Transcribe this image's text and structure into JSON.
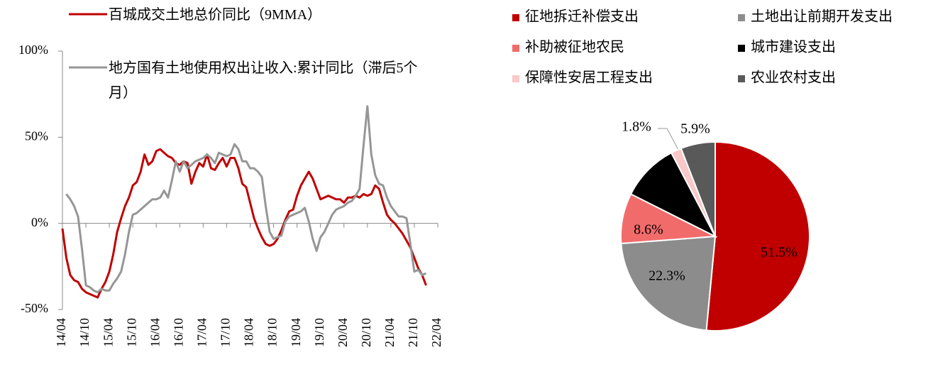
{
  "chart_data": [
    {
      "type": "line",
      "categories": [
        "14/04",
        null,
        null,
        null,
        null,
        null,
        "14/10",
        null,
        null,
        null,
        null,
        null,
        "15/04",
        null,
        null,
        null,
        null,
        null,
        "15/10",
        null,
        null,
        null,
        null,
        null,
        "16/04",
        null,
        null,
        null,
        null,
        null,
        "16/10",
        null,
        null,
        null,
        null,
        null,
        "17/04",
        null,
        null,
        null,
        null,
        null,
        "17/10",
        null,
        null,
        null,
        null,
        null,
        "18/04",
        null,
        null,
        null,
        null,
        null,
        "18/10",
        null,
        null,
        null,
        null,
        null,
        "19/04",
        null,
        null,
        null,
        null,
        null,
        "19/10",
        null,
        null,
        null,
        null,
        null,
        "20/04",
        null,
        null,
        null,
        null,
        null,
        "20/10",
        null,
        null,
        null,
        null,
        null,
        "21/04",
        null,
        null,
        null,
        null,
        null,
        "21/10",
        null,
        null,
        null,
        null,
        null,
        "22/04"
      ],
      "series": [
        {
          "name": "百城成交土地总价同比（9MMA）",
          "color": "#c00000",
          "values": [
            -3,
            -20,
            -30,
            -33,
            -34,
            -38,
            -40,
            -41,
            -42,
            -43,
            -38,
            -34,
            -28,
            -18,
            -5,
            3,
            10,
            15,
            22,
            24,
            30,
            40,
            34,
            36,
            42,
            43,
            41,
            39,
            38,
            35,
            34,
            36,
            35,
            23,
            30,
            35,
            33,
            40,
            32,
            31,
            35,
            38,
            33,
            38,
            38,
            32,
            23,
            21,
            12,
            3,
            -3,
            -8,
            -12,
            -13,
            -12,
            -9,
            -4,
            2,
            7,
            8,
            16,
            22,
            26,
            30,
            26,
            20,
            14,
            15,
            16,
            15,
            14,
            14,
            12,
            15,
            15,
            16,
            15,
            17,
            16,
            17,
            22,
            20,
            12,
            5,
            2,
            0,
            -3,
            -6,
            -10,
            -14,
            -20,
            -26,
            -30,
            -36,
            null,
            null,
            null
          ]
        },
        {
          "name": "地方国有土地使用权出让收入:累计同比（滞后5个月）",
          "color": "#969696",
          "values": [
            null,
            17,
            14,
            10,
            4,
            -15,
            -36,
            -37,
            -39,
            -40,
            -38,
            -39,
            -39,
            -35,
            -32,
            -28,
            -18,
            -5,
            5,
            6,
            8,
            10,
            12,
            14,
            14,
            15,
            19,
            15,
            25,
            36,
            30,
            36,
            32,
            34,
            36,
            37,
            38,
            40,
            38,
            35,
            41,
            40,
            39,
            40,
            46,
            43,
            36,
            36,
            32,
            32,
            30,
            27,
            10,
            -5,
            -9,
            -8,
            -7,
            1,
            4,
            5,
            6,
            7,
            9,
            1,
            -9,
            -16,
            -8,
            -5,
            0,
            5,
            8,
            9,
            10,
            12,
            13,
            16,
            20,
            45,
            68,
            40,
            28,
            23,
            22,
            15,
            10,
            7,
            4,
            4,
            3,
            -12,
            -28,
            -27,
            -30,
            -29,
            null,
            null,
            null
          ]
        }
      ],
      "ylim": [
        -50,
        100
      ],
      "yticks": [
        {
          "value": -50,
          "label": "-50%"
        },
        {
          "value": 0,
          "label": "0%"
        },
        {
          "value": 50,
          "label": "50%"
        },
        {
          "value": 100,
          "label": "100%"
        }
      ],
      "grid": false
    },
    {
      "type": "pie",
      "categories": [
        "征地拆迁补偿支出",
        "土地出让前期开发支出",
        "补助被征地农民",
        "城市建设支出",
        "保障性安居工程支出",
        "农业农村支出"
      ],
      "values": [
        51.5,
        22.3,
        8.6,
        9.9,
        1.8,
        5.9
      ],
      "value_labels": [
        "51.5%",
        "22.3%",
        "8.6%",
        null,
        "1.8%",
        "5.9%"
      ],
      "colors": [
        "#c00000",
        "#8c8c8c",
        "#f26b6b",
        "#000000",
        "#f9c8c8",
        "#595959"
      ]
    }
  ]
}
